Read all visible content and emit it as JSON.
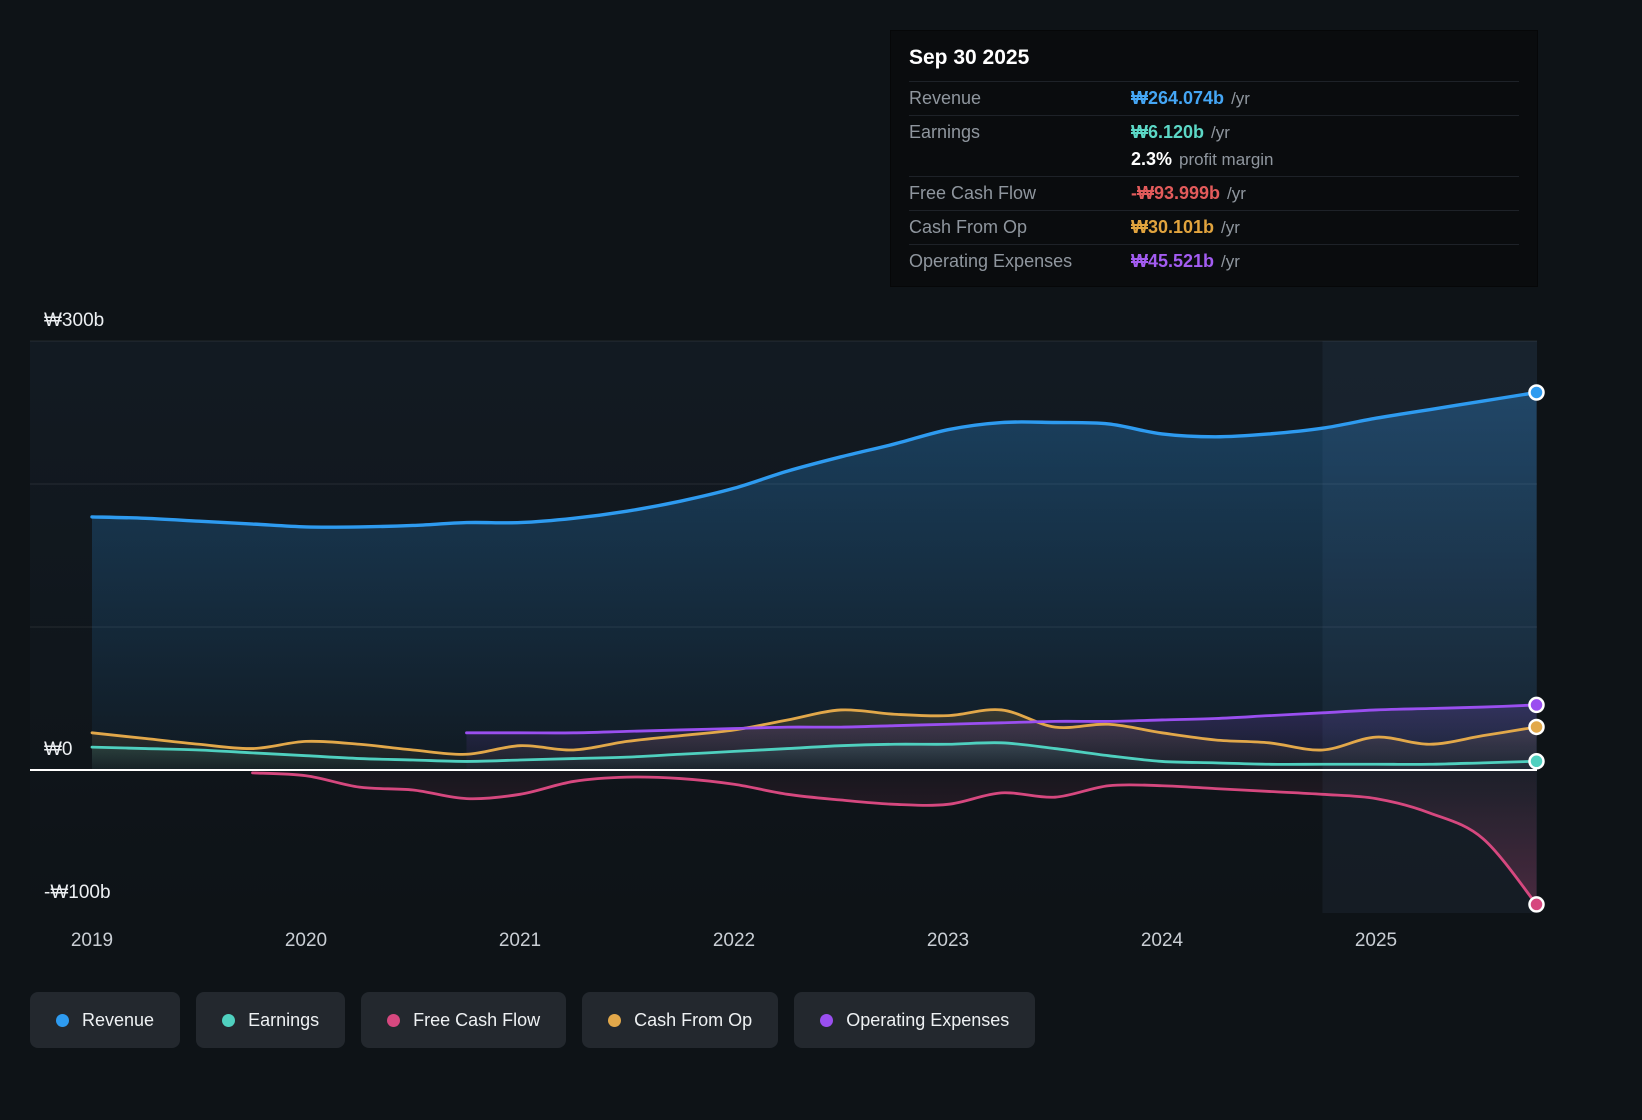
{
  "tooltip": {
    "date": "Sep 30 2025",
    "rows": {
      "revenue": {
        "label": "Revenue",
        "value": "₩264.074b",
        "suffix": "/yr",
        "color": "#45a6f5"
      },
      "earnings": {
        "label": "Earnings",
        "value": "₩6.120b",
        "suffix": "/yr",
        "color": "#5cd8c6"
      },
      "margin": {
        "label": "",
        "value": "2.3%",
        "suffix": "profit margin",
        "color": "#ffffff"
      },
      "fcf": {
        "label": "Free Cash Flow",
        "value": "-₩93.999b",
        "suffix": "/yr",
        "color": "#e35b5b"
      },
      "cashop": {
        "label": "Cash From Op",
        "value": "₩30.101b",
        "suffix": "/yr",
        "color": "#e2a43e"
      },
      "opex": {
        "label": "Operating Expenses",
        "value": "₩45.521b",
        "suffix": "/yr",
        "color": "#a35cf1"
      }
    }
  },
  "legend": [
    {
      "label": "Revenue",
      "color": "#2e9bf0"
    },
    {
      "label": "Earnings",
      "color": "#4fd0bf"
    },
    {
      "label": "Free Cash Flow",
      "color": "#d6487f"
    },
    {
      "label": "Cash From Op",
      "color": "#e2a84a"
    },
    {
      "label": "Operating Expenses",
      "color": "#9a4ff0"
    }
  ],
  "colors": {
    "background": "#0e1317",
    "zero_line": "#ffffff",
    "gridline": "#2a3036",
    "tooltip_background": "#0a0c0e",
    "legend_chip": "#23282e"
  },
  "chart_data": {
    "type": "area",
    "title": "",
    "unit": "₩ billions per year",
    "x_ticks": [
      "2019",
      "2020",
      "2021",
      "2022",
      "2023",
      "2024",
      "2025"
    ],
    "x_tick_values": [
      2019,
      2020,
      2021,
      2022,
      2023,
      2024,
      2025
    ],
    "y_axis_labels": [
      {
        "text": "₩300b",
        "value": 300
      },
      {
        "text": "₩0",
        "value": 0
      },
      {
        "text": "-₩100b",
        "value": -100
      }
    ],
    "gridline_values": [
      300,
      200,
      100
    ],
    "ylim": [
      -110,
      320
    ],
    "xlim": [
      2019,
      2025.75
    ],
    "highlight_band_start_x": 2024.75,
    "legend_position": "bottom",
    "series": [
      {
        "id": "revenue",
        "name": "Revenue",
        "color": "#2e9bf0",
        "fill_alpha": 0.3,
        "width": 3.4,
        "x": [
          2019.0,
          2019.25,
          2019.5,
          2019.75,
          2020.0,
          2020.25,
          2020.5,
          2020.75,
          2021.0,
          2021.25,
          2021.5,
          2021.75,
          2022.0,
          2022.25,
          2022.5,
          2022.75,
          2023.0,
          2023.25,
          2023.5,
          2023.75,
          2024.0,
          2024.25,
          2024.5,
          2024.75,
          2025.0,
          2025.25,
          2025.5,
          2025.75
        ],
        "y": [
          177,
          176,
          174,
          172,
          170,
          170,
          171,
          173,
          173,
          176,
          181,
          188,
          197,
          209,
          219,
          228,
          238,
          243,
          243,
          242,
          235,
          233,
          235,
          239,
          246,
          252,
          258,
          264
        ]
      },
      {
        "id": "earnings",
        "name": "Earnings",
        "color": "#4fd0bf",
        "fill_alpha": 0.16,
        "width": 2.8,
        "x": [
          2019.0,
          2019.25,
          2019.5,
          2019.75,
          2020.0,
          2020.25,
          2020.5,
          2020.75,
          2021.0,
          2021.25,
          2021.5,
          2021.75,
          2022.0,
          2022.25,
          2022.5,
          2022.75,
          2023.0,
          2023.25,
          2023.5,
          2023.75,
          2024.0,
          2024.25,
          2024.5,
          2024.75,
          2025.0,
          2025.25,
          2025.5,
          2025.75
        ],
        "y": [
          16,
          15,
          14,
          12,
          10,
          8,
          7,
          6,
          7,
          8,
          9,
          11,
          13,
          15,
          17,
          18,
          18,
          19,
          15,
          10,
          6,
          5,
          4,
          4,
          4,
          4,
          5,
          6.1
        ]
      },
      {
        "id": "cashop",
        "name": "Cash From Op",
        "color": "#e2a84a",
        "fill_alpha": 0.18,
        "width": 2.8,
        "x": [
          2019.0,
          2019.25,
          2019.5,
          2019.75,
          2020.0,
          2020.25,
          2020.5,
          2020.75,
          2021.0,
          2021.25,
          2021.5,
          2021.75,
          2022.0,
          2022.25,
          2022.5,
          2022.75,
          2023.0,
          2023.25,
          2023.5,
          2023.75,
          2024.0,
          2024.25,
          2024.5,
          2024.75,
          2025.0,
          2025.25,
          2025.5,
          2025.75
        ],
        "y": [
          26,
          22,
          18,
          15,
          20,
          18,
          14,
          11,
          17,
          14,
          20,
          24,
          28,
          35,
          42,
          39,
          38,
          42,
          30,
          32,
          26,
          21,
          19,
          14,
          23,
          18,
          24,
          30.1
        ]
      },
      {
        "id": "opex",
        "name": "Operating Expenses",
        "color": "#9a4ff0",
        "fill_alpha": 0.2,
        "width": 2.8,
        "x": [
          2020.75,
          2021.0,
          2021.25,
          2021.5,
          2021.75,
          2022.0,
          2022.25,
          2022.5,
          2022.75,
          2023.0,
          2023.25,
          2023.5,
          2023.75,
          2024.0,
          2024.25,
          2024.5,
          2024.75,
          2025.0,
          2025.25,
          2025.5,
          2025.75
        ],
        "y": [
          26,
          26,
          26,
          27,
          28,
          29,
          30,
          30,
          31,
          32,
          33,
          34,
          34,
          35,
          36,
          38,
          40,
          42,
          43,
          44,
          45.5
        ]
      },
      {
        "id": "fcf",
        "name": "Free Cash Flow",
        "color": "#d6487f",
        "fill_alpha": 0.3,
        "width": 2.8,
        "x": [
          2019.75,
          2020.0,
          2020.25,
          2020.5,
          2020.75,
          2021.0,
          2021.25,
          2021.5,
          2021.75,
          2022.0,
          2022.25,
          2022.5,
          2022.75,
          2023.0,
          2023.25,
          2023.5,
          2023.75,
          2024.0,
          2024.25,
          2024.5,
          2024.75,
          2025.0,
          2025.25,
          2025.5,
          2025.75
        ],
        "y": [
          -2,
          -4,
          -12,
          -14,
          -20,
          -17,
          -8,
          -5,
          -6,
          -10,
          -17,
          -21,
          -24,
          -24,
          -16,
          -19,
          -11,
          -11,
          -13,
          -15,
          -17,
          -20,
          -30,
          -48,
          -94
        ]
      }
    ]
  }
}
